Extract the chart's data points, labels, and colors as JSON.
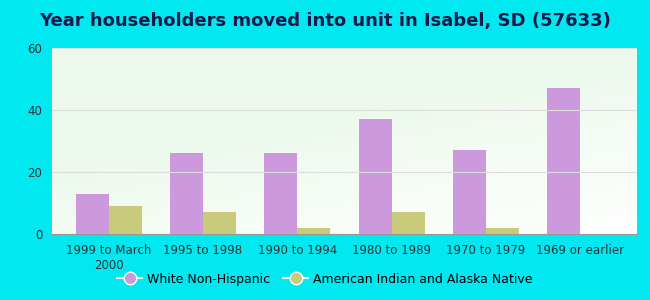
{
  "title": "Year householders moved into unit in Isabel, SD (57633)",
  "categories": [
    "1999 to March\n2000",
    "1995 to 1998",
    "1990 to 1994",
    "1980 to 1989",
    "1970 to 1979",
    "1969 or earlier"
  ],
  "white_values": [
    13,
    26,
    26,
    37,
    27,
    47
  ],
  "native_values": [
    9,
    7,
    2,
    7,
    2,
    0
  ],
  "white_color": "#cc99dd",
  "native_color": "#c8cc7a",
  "bg_outer": "#00e8f0",
  "ylim": [
    0,
    60
  ],
  "yticks": [
    0,
    20,
    40,
    60
  ],
  "bar_width": 0.35,
  "legend_white": "White Non-Hispanic",
  "legend_native": "American Indian and Alaska Native",
  "title_fontsize": 13,
  "tick_fontsize": 8.5,
  "legend_fontsize": 9,
  "title_color": "#1a1a4a",
  "grid_color": "#dddddd"
}
